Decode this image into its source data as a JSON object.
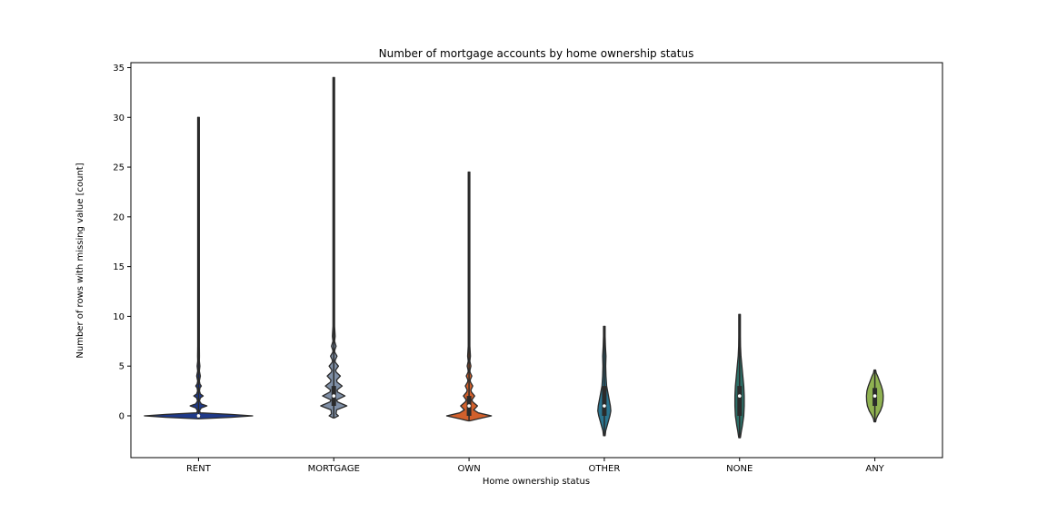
{
  "chart_data": {
    "type": "violin",
    "title": "Number of mortgage accounts by home ownership status",
    "xlabel": "Home ownership status",
    "ylabel": "Number of rows with missing value [count]",
    "ylim": [
      -4.2,
      35.5
    ],
    "yticks": [
      0,
      5,
      10,
      15,
      20,
      25,
      30,
      35
    ],
    "grid": false,
    "categories": [
      "RENT",
      "MORTGAGE",
      "OWN",
      "OTHER",
      "NONE",
      "ANY"
    ],
    "series": [
      {
        "category": "RENT",
        "color": "#1f3a8a",
        "min": -0.3,
        "max": 30,
        "q1": 0,
        "median": 0,
        "q3": 0,
        "profile": [
          [
            -0.3,
            0.2
          ],
          [
            -0.15,
            35
          ],
          [
            0,
            58
          ],
          [
            0.15,
            35
          ],
          [
            0.3,
            2
          ],
          [
            0.5,
            1
          ],
          [
            0.8,
            3
          ],
          [
            1,
            9
          ],
          [
            1.2,
            3
          ],
          [
            1.5,
            1
          ],
          [
            1.8,
            2
          ],
          [
            2,
            5
          ],
          [
            2.2,
            2
          ],
          [
            2.5,
            1
          ],
          [
            2.8,
            1.5
          ],
          [
            3,
            3
          ],
          [
            3.2,
            1.5
          ],
          [
            3.5,
            0.8
          ],
          [
            4,
            2
          ],
          [
            4.5,
            0.8
          ],
          [
            5,
            1.5
          ],
          [
            5.5,
            0.6
          ],
          [
            6,
            1
          ],
          [
            7,
            0.5
          ],
          [
            10,
            0.5
          ],
          [
            30,
            0.5
          ]
        ]
      },
      {
        "category": "MORTGAGE",
        "color": "#7f8fa6",
        "min": -0.2,
        "max": 34,
        "q1": 1,
        "median": 2,
        "q3": 3,
        "profile": [
          [
            -0.2,
            0.5
          ],
          [
            0,
            5
          ],
          [
            0.2,
            2.5
          ],
          [
            0.6,
            3
          ],
          [
            1,
            14
          ],
          [
            1.4,
            4
          ],
          [
            1.6,
            3
          ],
          [
            2,
            12
          ],
          [
            2.4,
            4
          ],
          [
            2.6,
            3.5
          ],
          [
            3,
            9
          ],
          [
            3.4,
            3.5
          ],
          [
            3.6,
            3
          ],
          [
            4,
            7
          ],
          [
            4.4,
            2.5
          ],
          [
            4.6,
            2
          ],
          [
            5,
            5
          ],
          [
            5.4,
            1.5
          ],
          [
            5.6,
            1.5
          ],
          [
            6,
            3.5
          ],
          [
            6.4,
            1
          ],
          [
            6.6,
            1
          ],
          [
            7,
            2.5
          ],
          [
            7.5,
            0.7
          ],
          [
            8,
            1.5
          ],
          [
            9,
            0.8
          ],
          [
            10,
            0.5
          ],
          [
            34,
            0.5
          ]
        ]
      },
      {
        "category": "OWN",
        "color": "#d2602c",
        "min": -0.5,
        "max": 24.5,
        "q1": 0,
        "median": 1,
        "q3": 2,
        "profile": [
          [
            -0.5,
            0.5
          ],
          [
            -0.3,
            10
          ],
          [
            0,
            24
          ],
          [
            0.3,
            10
          ],
          [
            0.6,
            5
          ],
          [
            1,
            9
          ],
          [
            1.4,
            4
          ],
          [
            1.6,
            3
          ],
          [
            2,
            6
          ],
          [
            2.4,
            2.5
          ],
          [
            2.6,
            2
          ],
          [
            3,
            4
          ],
          [
            3.4,
            1.5
          ],
          [
            3.6,
            1.2
          ],
          [
            4,
            3
          ],
          [
            4.4,
            1
          ],
          [
            4.6,
            1
          ],
          [
            5,
            2
          ],
          [
            5.5,
            0.8
          ],
          [
            6,
            1.5
          ],
          [
            7,
            0.8
          ],
          [
            9,
            0.5
          ],
          [
            24.5,
            0.5
          ]
        ]
      },
      {
        "category": "OTHER",
        "color": "#2b7590",
        "min": -2,
        "max": 9,
        "q1": 0,
        "median": 1,
        "q3": 3,
        "profile": [
          [
            -2,
            0.5
          ],
          [
            -1.5,
            1.5
          ],
          [
            -1,
            3
          ],
          [
            -0.5,
            4.5
          ],
          [
            0,
            6
          ],
          [
            0.5,
            7
          ],
          [
            1,
            6.5
          ],
          [
            1.5,
            5.5
          ],
          [
            2,
            4.5
          ],
          [
            2.5,
            3.5
          ],
          [
            3,
            2.5
          ],
          [
            4,
            1.8
          ],
          [
            5,
            1.5
          ],
          [
            6,
            1.8
          ],
          [
            7,
            1.2
          ],
          [
            8,
            0.8
          ],
          [
            9,
            0.5
          ]
        ]
      },
      {
        "category": "NONE",
        "color": "#2d6e66",
        "min": -2.2,
        "max": 10.2,
        "q1": 0,
        "median": 2,
        "q3": 3,
        "profile": [
          [
            -2.2,
            0.5
          ],
          [
            -1.5,
            2
          ],
          [
            -1,
            3
          ],
          [
            0,
            4.5
          ],
          [
            1,
            5
          ],
          [
            2,
            5
          ],
          [
            3,
            4.5
          ],
          [
            4,
            3.5
          ],
          [
            5,
            2.5
          ],
          [
            6,
            1.5
          ],
          [
            7,
            1
          ],
          [
            8,
            0.8
          ],
          [
            9,
            0.6
          ],
          [
            10.2,
            0.5
          ]
        ]
      },
      {
        "category": "ANY",
        "color": "#8fb151",
        "min": -0.6,
        "max": 4.6,
        "q1": 1,
        "median": 2,
        "q3": 2.8,
        "profile": [
          [
            -0.6,
            0.5
          ],
          [
            -0.3,
            1.5
          ],
          [
            0,
            3
          ],
          [
            0.5,
            6
          ],
          [
            1,
            8
          ],
          [
            1.5,
            8.8
          ],
          [
            2,
            9
          ],
          [
            2.5,
            8.5
          ],
          [
            3,
            7
          ],
          [
            3.5,
            5
          ],
          [
            4,
            3
          ],
          [
            4.3,
            1.5
          ],
          [
            4.6,
            0.5
          ]
        ]
      }
    ]
  }
}
